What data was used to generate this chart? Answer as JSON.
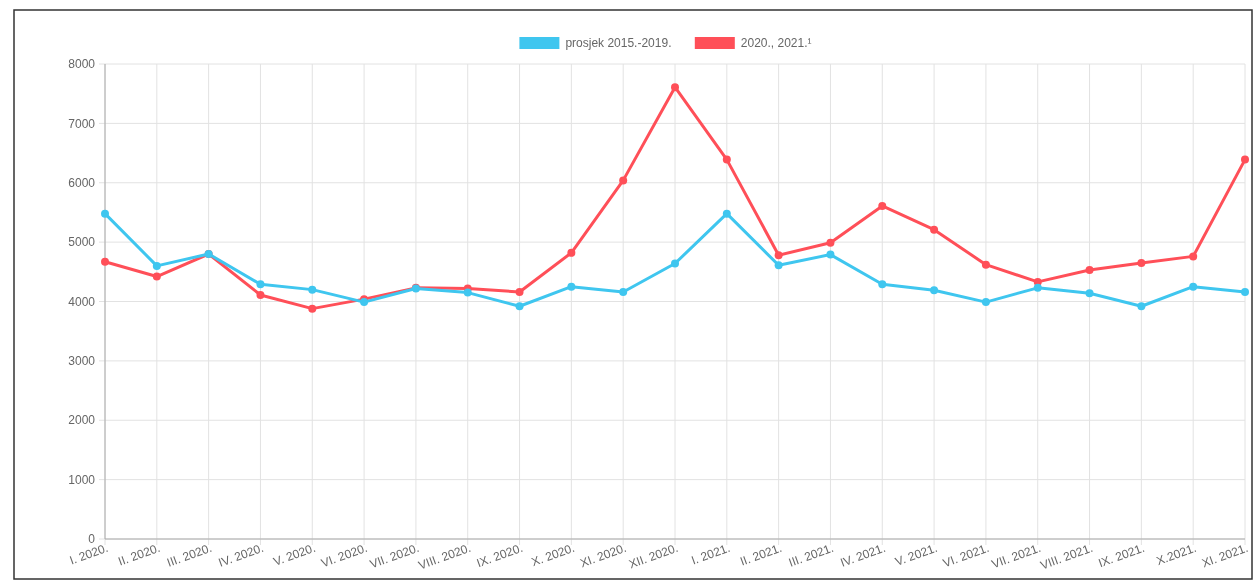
{
  "chart_data": {
    "type": "line",
    "categories": [
      "I. 2020.",
      "II. 2020.",
      "III. 2020.",
      "IV. 2020.",
      "V. 2020.",
      "VI. 2020.",
      "VII. 2020.",
      "VIII. 2020.",
      "IX. 2020.",
      "X. 2020.",
      "XI. 2020.",
      "XII. 2020.",
      "I. 2021.",
      "II. 2021.",
      "III. 2021.",
      "IV. 2021.",
      "V. 2021.",
      "VI. 2021.",
      "VII. 2021.",
      "VIII. 2021.",
      "IX. 2021.",
      "X.2021.",
      "XI. 2021."
    ],
    "series": [
      {
        "name": "prosjek 2015.-2019.",
        "color": "#3fc6ef",
        "values": [
          5480,
          4600,
          4800,
          4290,
          4200,
          3990,
          4220,
          4150,
          3920,
          4250,
          4160,
          4640,
          5480,
          4610,
          4790,
          4290,
          4190,
          3990,
          4230,
          4140,
          3920,
          4250,
          4160
        ]
      },
      {
        "name": "2020., 2021.¹",
        "color": "#ff4f58",
        "values": [
          4670,
          4420,
          4800,
          4110,
          3880,
          4040,
          4230,
          4220,
          4160,
          4820,
          6040,
          7610,
          6390,
          4780,
          4990,
          5610,
          5210,
          4620,
          4330,
          4530,
          4650,
          4760,
          6390
        ]
      }
    ],
    "ylim": [
      0,
      8000
    ],
    "yticks": [
      0,
      1000,
      2000,
      3000,
      4000,
      5000,
      6000,
      7000,
      8000
    ],
    "grid": true,
    "legend": "top",
    "marker": "circle",
    "line_style": "solid"
  }
}
